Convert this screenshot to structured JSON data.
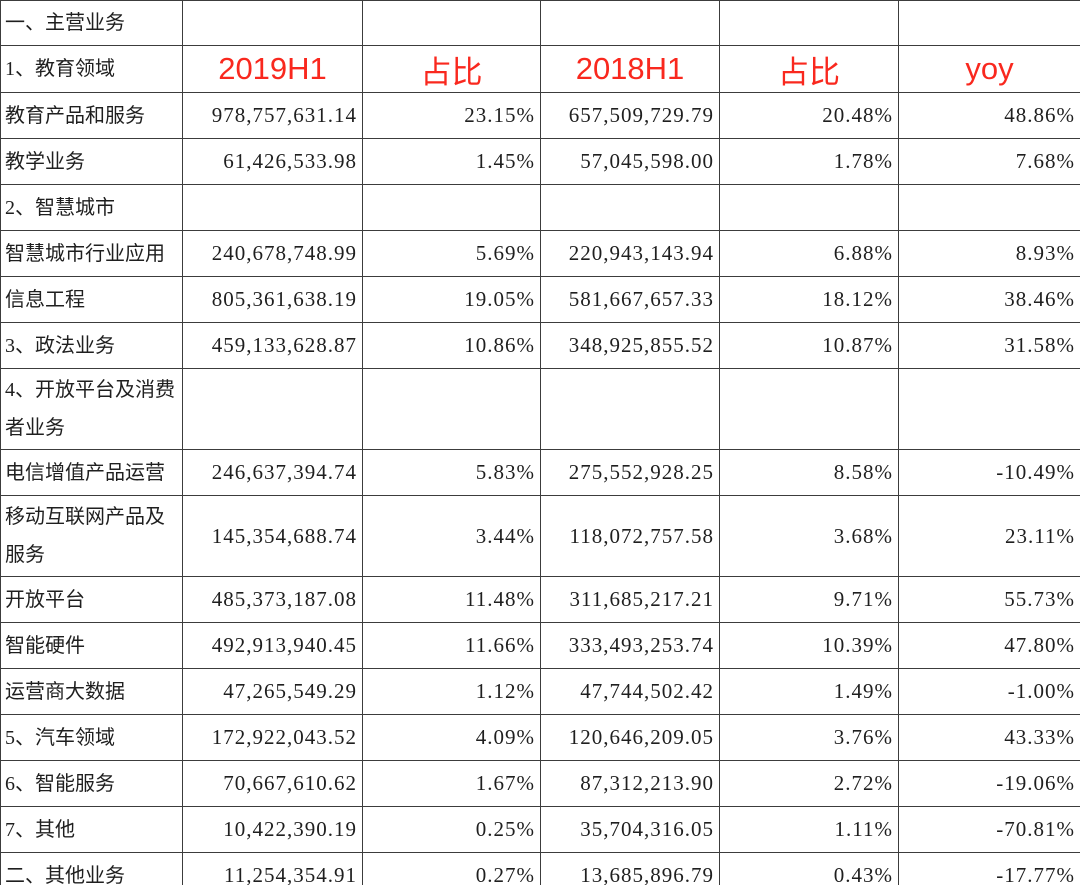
{
  "colors": {
    "header_red": "#f9281e",
    "grid_line": "#3c3c3c",
    "text": "#1f1f1f",
    "background": "#ffffff"
  },
  "table": {
    "col_names": [
      "cell-2019h1-value",
      "cell-2019h1-ratio",
      "cell-2018h1-value",
      "cell-2018h1-ratio",
      "cell-yoy"
    ],
    "rows": [
      {
        "type": "title",
        "label": "一、主营业务",
        "cells": [
          "",
          "",
          "",
          "",
          ""
        ]
      },
      {
        "type": "header",
        "label": "1、教育领域",
        "cells": [
          "2019H1",
          "占比",
          "2018H1",
          "占比",
          "yoy"
        ]
      },
      {
        "type": "data",
        "label": "教育产品和服务",
        "cells": [
          "978,757,631.14",
          "23.15%",
          "657,509,729.79",
          "20.48%",
          "48.86%"
        ]
      },
      {
        "type": "data",
        "label": "教学业务",
        "cells": [
          "61,426,533.98",
          "1.45%",
          "57,045,598.00",
          "1.78%",
          "7.68%"
        ]
      },
      {
        "type": "section",
        "label": "2、智慧城市",
        "cells": [
          "",
          "",
          "",
          "",
          ""
        ]
      },
      {
        "type": "data",
        "label": "智慧城市行业应用",
        "cells": [
          "240,678,748.99",
          "5.69%",
          "220,943,143.94",
          "6.88%",
          "8.93%"
        ]
      },
      {
        "type": "data",
        "label": "信息工程",
        "cells": [
          "805,361,638.19",
          "19.05%",
          "581,667,657.33",
          "18.12%",
          "38.46%"
        ]
      },
      {
        "type": "data",
        "label": "3、政法业务",
        "cells": [
          "459,133,628.87",
          "10.86%",
          "348,925,855.52",
          "10.87%",
          "31.58%"
        ]
      },
      {
        "type": "section",
        "label": "4、开放平台及消费\n者业务",
        "cells": [
          "",
          "",
          "",
          "",
          ""
        ]
      },
      {
        "type": "data",
        "label": "电信增值产品运营",
        "cells": [
          "246,637,394.74",
          "5.83%",
          "275,552,928.25",
          "8.58%",
          "-10.49%"
        ]
      },
      {
        "type": "data",
        "label": "移动互联网产品及\n服务",
        "cells": [
          "145,354,688.74",
          "3.44%",
          "118,072,757.58",
          "3.68%",
          "23.11%"
        ]
      },
      {
        "type": "data",
        "label": "开放平台",
        "cells": [
          "485,373,187.08",
          "11.48%",
          "311,685,217.21",
          "9.71%",
          "55.73%"
        ]
      },
      {
        "type": "data",
        "label": "智能硬件",
        "cells": [
          "492,913,940.45",
          "11.66%",
          "333,493,253.74",
          "10.39%",
          "47.80%"
        ]
      },
      {
        "type": "data",
        "label": "运营商大数据",
        "cells": [
          "47,265,549.29",
          "1.12%",
          "47,744,502.42",
          "1.49%",
          "-1.00%"
        ]
      },
      {
        "type": "data",
        "label": "5、汽车领域",
        "cells": [
          "172,922,043.52",
          "4.09%",
          "120,646,209.05",
          "3.76%",
          "43.33%"
        ]
      },
      {
        "type": "data",
        "label": "6、智能服务",
        "cells": [
          "70,667,610.62",
          "1.67%",
          "87,312,213.90",
          "2.72%",
          "-19.06%"
        ]
      },
      {
        "type": "data",
        "label": "7、其他",
        "cells": [
          "10,422,390.19",
          "0.25%",
          "35,704,316.05",
          "1.11%",
          "-70.81%"
        ]
      },
      {
        "type": "data",
        "label": "二、其他业务",
        "cells": [
          "11,254,354.91",
          "0.27%",
          "13,685,896.79",
          "0.43%",
          "-17.77%"
        ]
      }
    ]
  }
}
